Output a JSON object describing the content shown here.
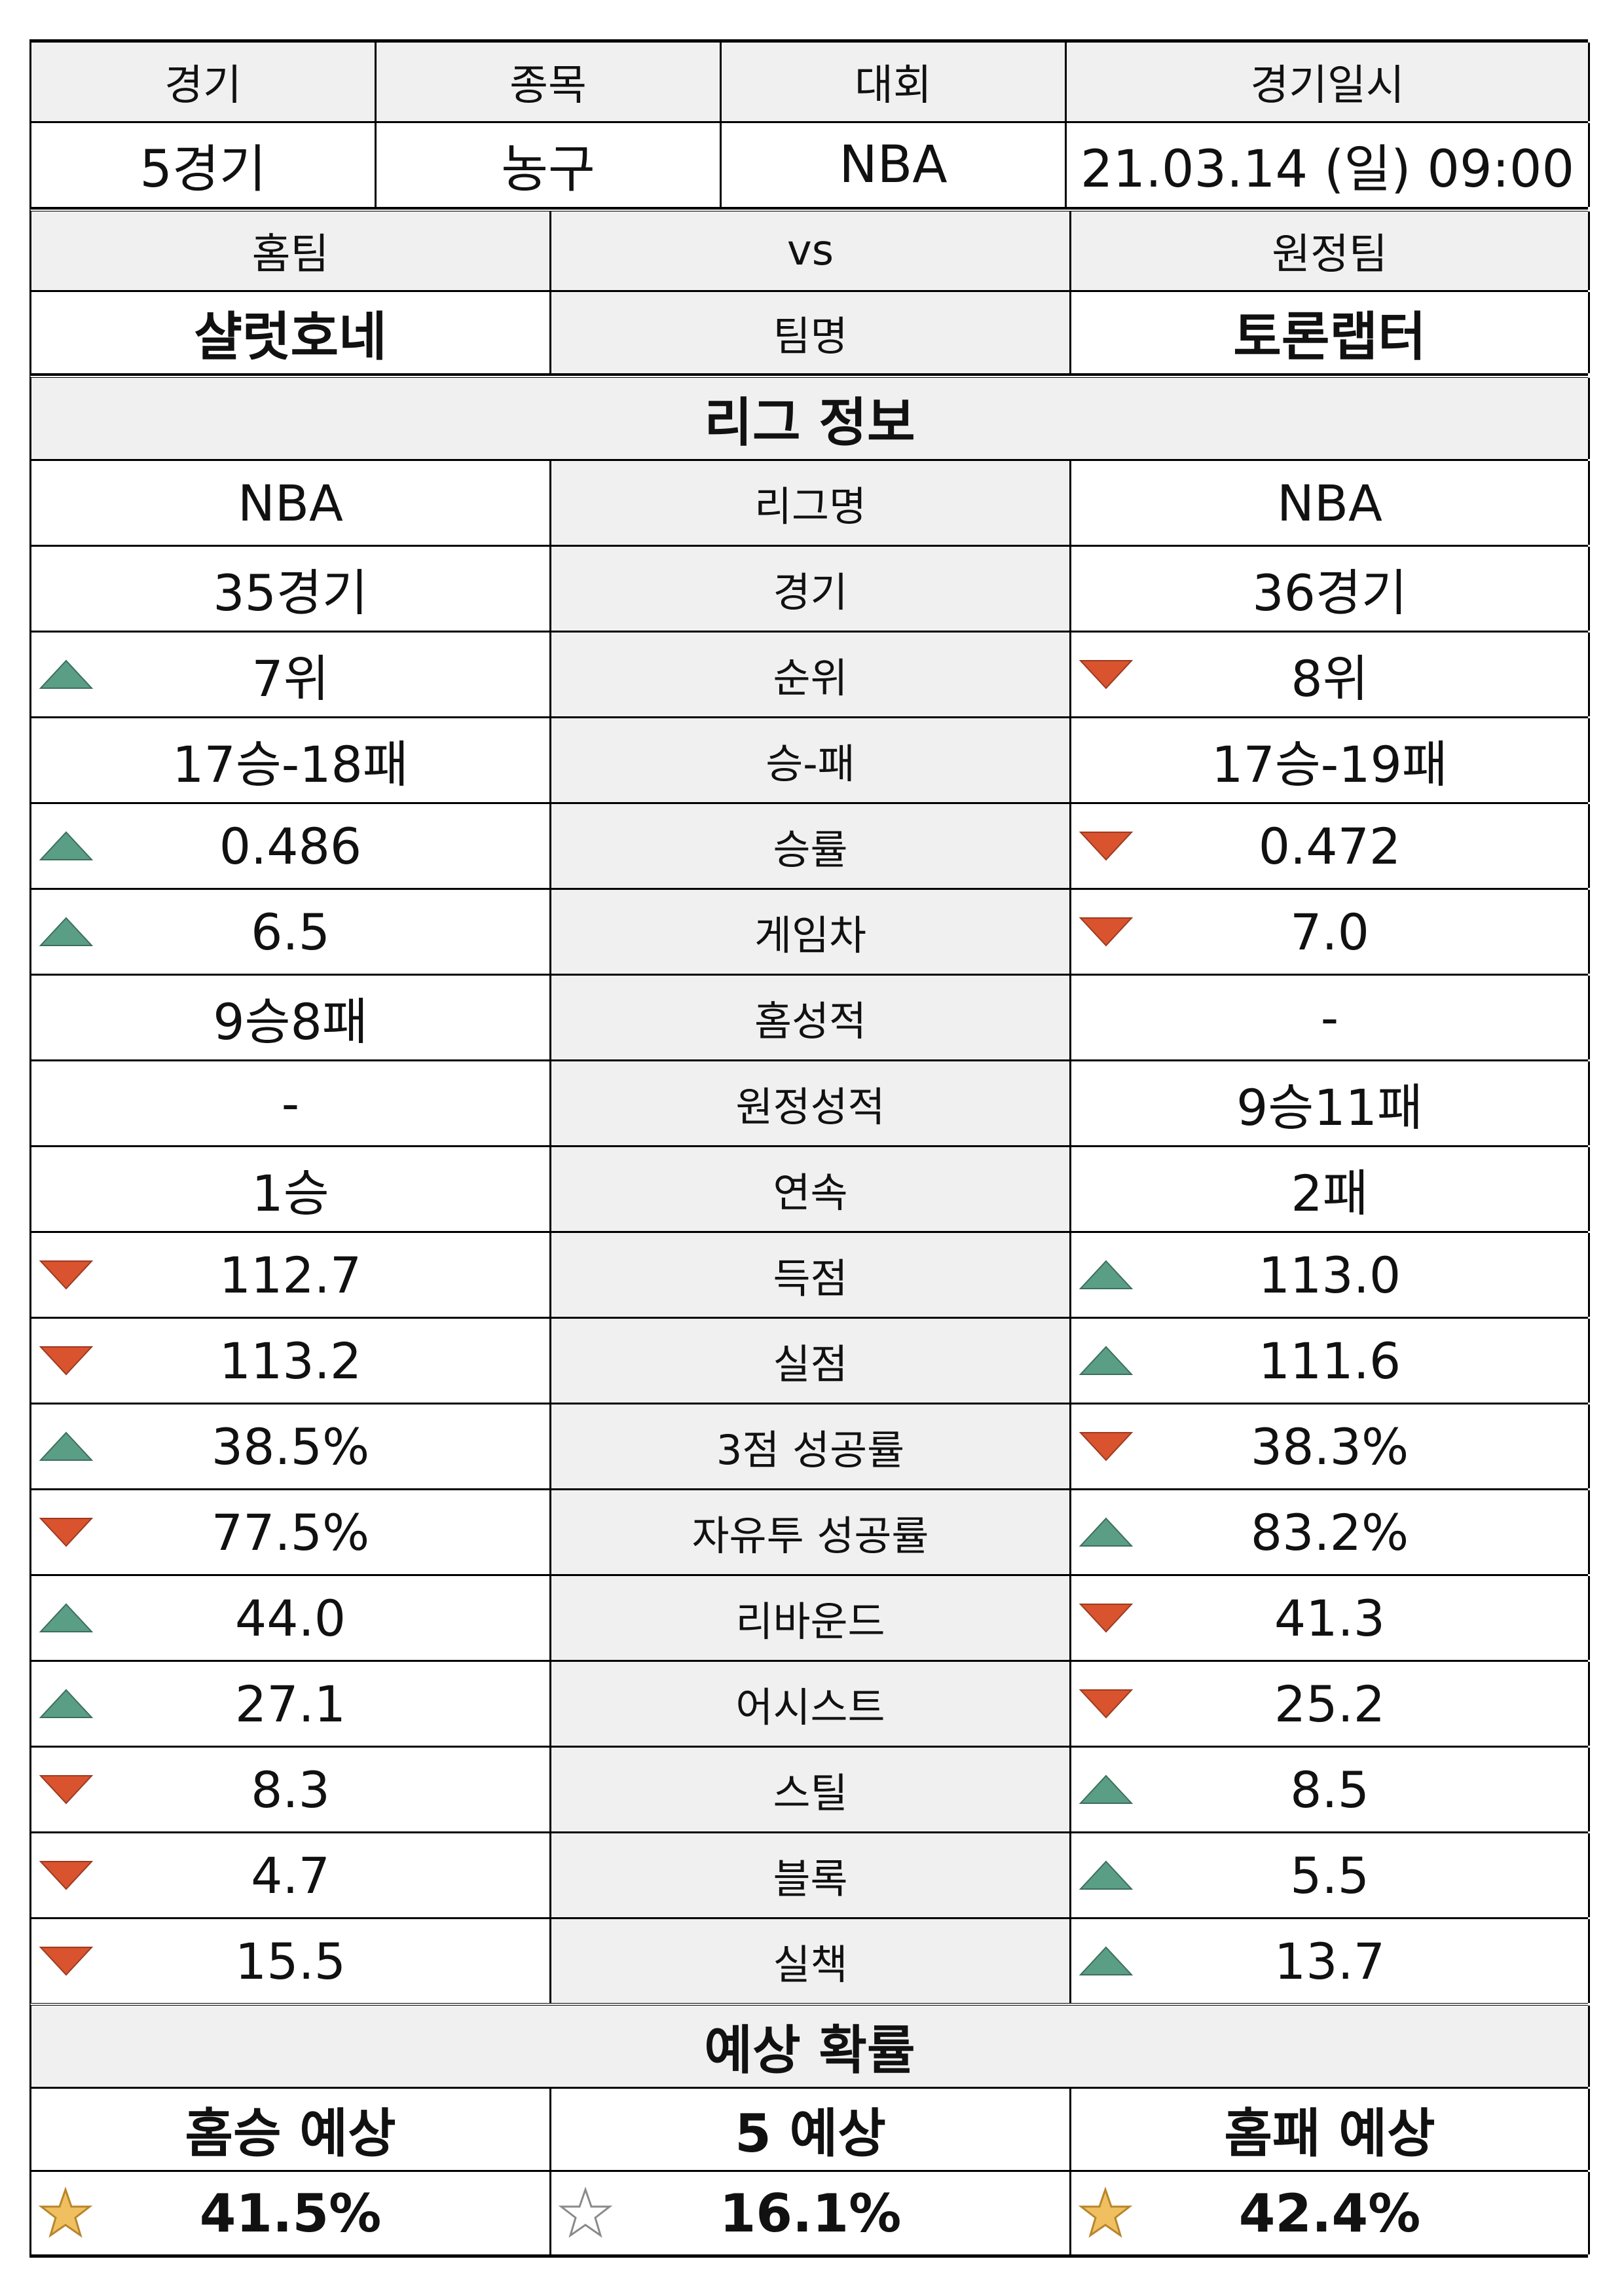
{
  "header": {
    "labels": [
      "경기",
      "종목",
      "대회",
      "경기일시"
    ],
    "values": [
      "5경기",
      "농구",
      "NBA",
      "21.03.14 (일) 09:00"
    ]
  },
  "teams": {
    "home_label": "홈팀",
    "vs_label": "vs",
    "away_label": "원정팀",
    "home_name": "샬럿호네",
    "name_label": "팀명",
    "away_name": "토론랩터"
  },
  "league_title": "리그 정보",
  "stats": [
    {
      "label": "리그명",
      "home": "NBA",
      "away": "NBA",
      "home_icon": "",
      "away_icon": ""
    },
    {
      "label": "경기",
      "home": "35경기",
      "away": "36경기",
      "home_icon": "",
      "away_icon": ""
    },
    {
      "label": "순위",
      "home": "7위",
      "away": "8위",
      "home_icon": "up-triangle-icon",
      "away_icon": "down-triangle-icon"
    },
    {
      "label": "승-패",
      "home": "17승-18패",
      "away": "17승-19패",
      "home_icon": "",
      "away_icon": ""
    },
    {
      "label": "승률",
      "home": "0.486",
      "away": "0.472",
      "home_icon": "up-triangle-icon",
      "away_icon": "down-triangle-icon"
    },
    {
      "label": "게임차",
      "home": "6.5",
      "away": "7.0",
      "home_icon": "up-triangle-icon",
      "away_icon": "down-triangle-icon"
    },
    {
      "label": "홈성적",
      "home": "9승8패",
      "away": "-",
      "home_icon": "",
      "away_icon": ""
    },
    {
      "label": "원정성적",
      "home": "-",
      "away": "9승11패",
      "home_icon": "",
      "away_icon": ""
    },
    {
      "label": "연속",
      "home": "1승",
      "away": "2패",
      "home_icon": "",
      "away_icon": ""
    },
    {
      "label": "득점",
      "home": "112.7",
      "away": "113.0",
      "home_icon": "down-triangle-icon",
      "away_icon": "up-triangle-icon"
    },
    {
      "label": "실점",
      "home": "113.2",
      "away": "111.6",
      "home_icon": "down-triangle-icon",
      "away_icon": "up-triangle-icon"
    },
    {
      "label": "3점 성공률",
      "home": "38.5%",
      "away": "38.3%",
      "home_icon": "up-triangle-icon",
      "away_icon": "down-triangle-icon"
    },
    {
      "label": "자유투 성공률",
      "home": "77.5%",
      "away": "83.2%",
      "home_icon": "down-triangle-icon",
      "away_icon": "up-triangle-icon"
    },
    {
      "label": "리바운드",
      "home": "44.0",
      "away": "41.3",
      "home_icon": "up-triangle-icon",
      "away_icon": "down-triangle-icon"
    },
    {
      "label": "어시스트",
      "home": "27.1",
      "away": "25.2",
      "home_icon": "up-triangle-icon",
      "away_icon": "down-triangle-icon"
    },
    {
      "label": "스틸",
      "home": "8.3",
      "away": "8.5",
      "home_icon": "down-triangle-icon",
      "away_icon": "up-triangle-icon"
    },
    {
      "label": "블록",
      "home": "4.7",
      "away": "5.5",
      "home_icon": "down-triangle-icon",
      "away_icon": "up-triangle-icon"
    },
    {
      "label": "실책",
      "home": "15.5",
      "away": "13.7",
      "home_icon": "down-triangle-icon",
      "away_icon": "up-triangle-icon"
    }
  ],
  "prediction": {
    "title": "예상 확률",
    "labels": [
      "홈승 예상",
      "5 예상",
      "홈패 예상"
    ],
    "values": [
      "41.5%",
      "16.1%",
      "42.4%"
    ],
    "icons": [
      "star-filled-icon",
      "star-outline-icon",
      "star-filled-icon"
    ]
  },
  "colors": {
    "up": "#5a9e86",
    "down": "#d9532f",
    "star_fill": "#f0c060",
    "star_stroke": "#b8862b",
    "gray_bg": "#f0f0f0"
  }
}
